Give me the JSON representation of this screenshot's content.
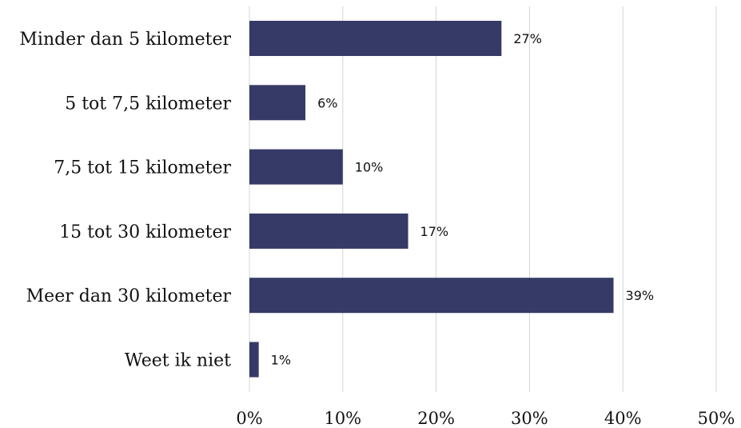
{
  "chart_data": {
    "type": "bar",
    "orientation": "horizontal",
    "categories": [
      "Minder dan 5 kilometer",
      "5 tot 7,5 kilometer",
      "7,5 tot 15 kilometer",
      "15 tot 30 kilometer",
      "Meer dan 30 kilometer",
      "Weet ik niet"
    ],
    "values": [
      27,
      6,
      10,
      17,
      39,
      1
    ],
    "data_labels": [
      "27%",
      "6%",
      "10%",
      "17%",
      "39%",
      "1%"
    ],
    "xlim": [
      0,
      50
    ],
    "x_ticks": [
      0,
      10,
      20,
      30,
      40,
      50
    ],
    "x_tick_labels": [
      "0%",
      "10%",
      "20%",
      "30%",
      "40%",
      "50%"
    ],
    "grid": "vertical",
    "bar_color": "#363a66",
    "title": "",
    "xlabel": "",
    "ylabel": ""
  }
}
